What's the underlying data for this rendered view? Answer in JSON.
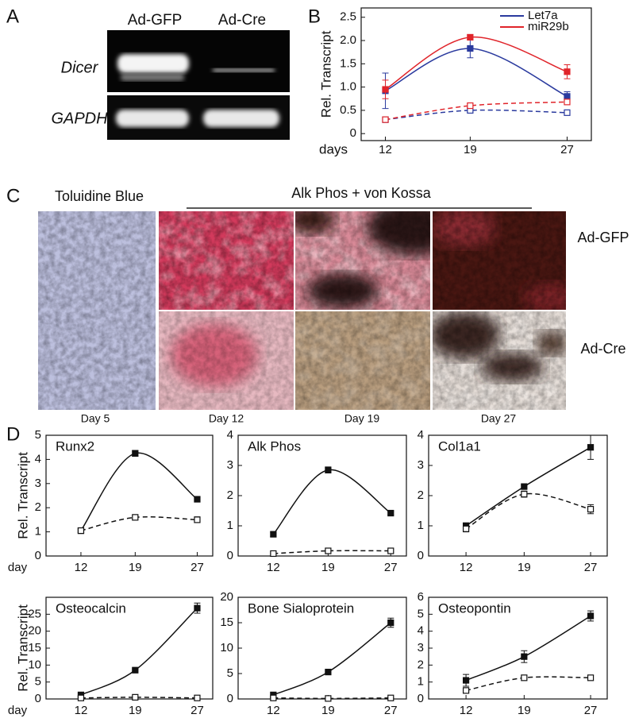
{
  "panels": {
    "a": "A",
    "b": "B",
    "c": "C",
    "d": "D"
  },
  "gel": {
    "columns": [
      "Ad-GFP",
      "Ad-Cre"
    ],
    "rows": [
      "Dicer",
      "GAPDH"
    ]
  },
  "photos": {
    "headers": [
      "Toluidine Blue",
      "Alk Phos + von Kossa"
    ],
    "rows": [
      "Ad-GFP",
      "Ad-Cre"
    ],
    "days": [
      "Day 5",
      "Day 12",
      "Day 19",
      "Day 27"
    ]
  },
  "chart_data": [
    {
      "type": "line",
      "ylabel": "Rel. Transcript",
      "xlabel": "days",
      "x": [
        12,
        19,
        27
      ],
      "xlim": [
        10,
        29
      ],
      "xticks": [
        12,
        19,
        27
      ],
      "ylim": [
        -0.15,
        2.7
      ],
      "yticks": [
        0,
        0.5,
        {
          "value": 1,
          "label": "1.0"
        },
        1.5,
        {
          "value": 2,
          "label": "2.0"
        },
        2.5
      ],
      "legend": "upper right",
      "grid": false,
      "series": [
        {
          "name": "Let7a",
          "color": "#2a3a9e",
          "values": [
            0.92,
            1.83,
            0.8
          ],
          "errors": [
            0.38,
            0.2,
            0.1
          ]
        },
        {
          "name": "miR29b",
          "color": "#e0242a",
          "values": [
            0.95,
            2.07,
            1.33
          ],
          "errors": [
            0.2,
            0.05,
            0.15
          ]
        },
        {
          "color": "#2a3a9e",
          "dashed": true,
          "values": [
            0.3,
            0.5,
            0.45
          ],
          "errors": [
            0.04,
            0.04,
            0.04
          ]
        },
        {
          "color": "#e0242a",
          "dashed": true,
          "values": [
            0.3,
            0.6,
            0.68
          ],
          "errors": [
            0.04,
            0.04,
            0.04
          ]
        }
      ]
    },
    {
      "type": "line",
      "title": "Runx2",
      "ylabel": "Rel. Transcript",
      "xlabel": "day",
      "x": [
        12,
        19,
        27
      ],
      "xlim": [
        7.5,
        29
      ],
      "xticks": [
        12,
        19,
        27
      ],
      "ylim": [
        0,
        5
      ],
      "yticks": [
        0,
        1,
        2,
        3,
        4,
        5
      ],
      "grid": false,
      "series": [
        {
          "color": "#111111",
          "values": [
            1.05,
            4.25,
            2.35
          ],
          "errors": [
            0.1,
            0.12,
            0.05
          ]
        },
        {
          "color": "#111111",
          "dashed": true,
          "values": [
            1.05,
            1.6,
            1.5
          ],
          "errors": [
            0.05,
            0.05,
            0.12
          ]
        }
      ]
    },
    {
      "type": "line",
      "title": "Alk Phos",
      "x": [
        12,
        19,
        27
      ],
      "xlim": [
        7.5,
        29
      ],
      "xticks": [
        12,
        19,
        27
      ],
      "ylim": [
        0,
        4
      ],
      "yticks": [
        0,
        1,
        2,
        3,
        4
      ],
      "grid": false,
      "series": [
        {
          "color": "#111111",
          "values": [
            0.72,
            2.85,
            1.42
          ],
          "errors": [
            0.07,
            0.1,
            0.05
          ]
        },
        {
          "color": "#111111",
          "dashed": true,
          "values": [
            0.08,
            0.17,
            0.17
          ],
          "errors": [
            0.02,
            0.03,
            0.04
          ]
        }
      ]
    },
    {
      "type": "line",
      "title": "Col1a1",
      "x": [
        12,
        19,
        27
      ],
      "xlim": [
        7.5,
        29
      ],
      "xticks": [
        12,
        19,
        27
      ],
      "ylim": [
        0,
        4
      ],
      "yticks": [
        0,
        1,
        2,
        3,
        4
      ],
      "grid": false,
      "series": [
        {
          "color": "#111111",
          "values": [
            1.0,
            2.3,
            3.6
          ],
          "errors": [
            0.1,
            0.05,
            0.4
          ]
        },
        {
          "color": "#111111",
          "dashed": true,
          "values": [
            0.9,
            2.05,
            1.55
          ],
          "errors": [
            0.1,
            0.1,
            0.15
          ]
        }
      ]
    },
    {
      "type": "line",
      "title": "Osteocalcin",
      "ylabel": "Rel. Transcript",
      "xlabel": "day",
      "x": [
        12,
        19,
        27
      ],
      "xlim": [
        7.5,
        29
      ],
      "xticks": [
        12,
        19,
        27
      ],
      "ylim": [
        0,
        30
      ],
      "yticks": [
        0,
        5,
        10,
        15,
        20,
        25
      ],
      "grid": false,
      "series": [
        {
          "color": "#111111",
          "values": [
            1.2,
            8.5,
            26.8
          ],
          "errors": [
            0.4,
            0.3,
            1.5
          ]
        },
        {
          "color": "#111111",
          "dashed": true,
          "values": [
            0.3,
            0.5,
            0.3
          ],
          "errors": [
            0.1,
            0.1,
            0.1
          ]
        }
      ]
    },
    {
      "type": "line",
      "title": "Bone Sialoprotein",
      "x": [
        12,
        19,
        27
      ],
      "xlim": [
        7.5,
        29
      ],
      "xticks": [
        12,
        19,
        27
      ],
      "ylim": [
        0,
        20
      ],
      "yticks": [
        0,
        5,
        10,
        15,
        20
      ],
      "grid": false,
      "series": [
        {
          "color": "#111111",
          "values": [
            0.8,
            5.3,
            15
          ],
          "errors": [
            0.4,
            0.2,
            0.9
          ]
        },
        {
          "color": "#111111",
          "dashed": true,
          "values": [
            0.2,
            0.1,
            0.2
          ],
          "errors": [
            0.1,
            0.05,
            0.1
          ]
        }
      ]
    },
    {
      "type": "line",
      "title": "Osteopontin",
      "x": [
        12,
        19,
        27
      ],
      "xlim": [
        7.5,
        29
      ],
      "xticks": [
        12,
        19,
        27
      ],
      "ylim": [
        0,
        6
      ],
      "yticks": [
        0,
        1,
        2,
        3,
        4,
        5,
        6
      ],
      "grid": false,
      "series": [
        {
          "color": "#111111",
          "values": [
            1.1,
            2.5,
            4.9
          ],
          "errors": [
            0.35,
            0.35,
            0.3
          ]
        },
        {
          "color": "#111111",
          "dashed": true,
          "values": [
            0.5,
            1.25,
            1.25
          ],
          "errors": [
            0.05,
            0.05,
            0.15
          ]
        }
      ]
    }
  ]
}
